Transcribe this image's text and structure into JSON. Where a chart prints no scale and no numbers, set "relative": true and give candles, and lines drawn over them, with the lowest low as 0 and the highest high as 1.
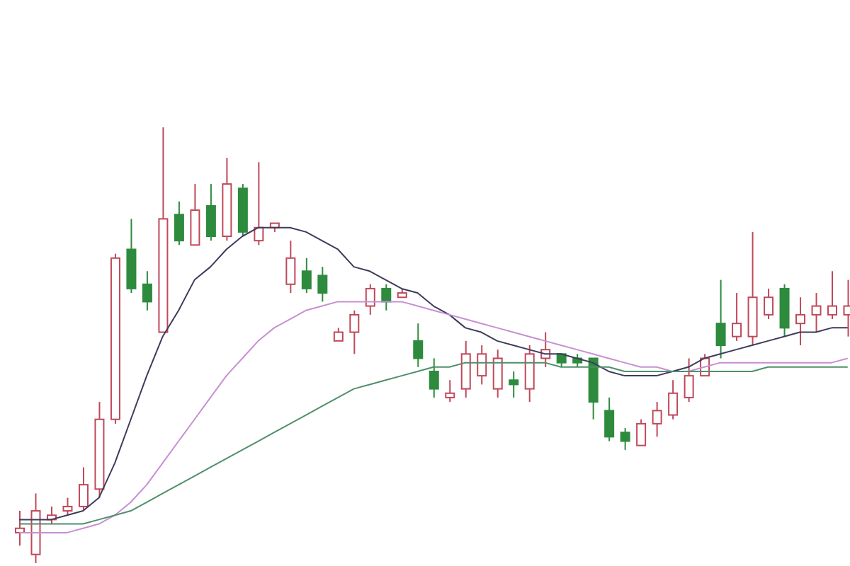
{
  "chart_data": {
    "type": "candlestick",
    "relative": true,
    "categories": [
      null,
      null,
      null,
      null,
      null,
      null,
      null,
      null,
      null,
      null,
      null,
      null,
      null,
      null,
      null,
      null,
      null,
      null,
      null,
      null,
      null,
      null,
      null,
      null,
      null,
      null,
      null,
      null,
      null,
      null,
      null,
      null,
      null,
      null,
      null,
      null,
      null,
      null,
      null,
      null,
      null,
      null,
      null,
      null,
      null,
      null,
      null,
      null,
      null,
      null,
      null,
      null,
      null
    ],
    "ohlc": [
      [
        0.07,
        0.12,
        0.04,
        0.08
      ],
      [
        0.02,
        0.16,
        0,
        0.12
      ],
      [
        0.1,
        0.13,
        0.09,
        0.11
      ],
      [
        0.12,
        0.15,
        0.11,
        0.13
      ],
      [
        0.13,
        0.22,
        0.12,
        0.18
      ],
      [
        0.17,
        0.37,
        0.15,
        0.33
      ],
      [
        0.33,
        0.71,
        0.32,
        0.7
      ],
      [
        0.72,
        0.79,
        0.62,
        0.63
      ],
      [
        0.64,
        0.67,
        0.58,
        0.6
      ],
      [
        0.53,
        1,
        0.53,
        0.79
      ],
      [
        0.8,
        0.83,
        0.73,
        0.74
      ],
      [
        0.73,
        0.87,
        0.73,
        0.81
      ],
      [
        0.82,
        0.87,
        0.74,
        0.75
      ],
      [
        0.75,
        0.93,
        0.74,
        0.87
      ],
      [
        0.86,
        0.87,
        0.75,
        0.76
      ],
      [
        0.74,
        0.92,
        0.73,
        0.77
      ],
      [
        0.77,
        0.78,
        0.76,
        0.78
      ],
      [
        0.64,
        0.74,
        0.62,
        0.7
      ],
      [
        0.67,
        0.7,
        0.62,
        0.63
      ],
      [
        0.66,
        0.68,
        0.6,
        0.62
      ],
      [
        0.51,
        0.54,
        0.51,
        0.53
      ],
      [
        0.53,
        0.58,
        0.48,
        0.57
      ],
      [
        0.59,
        0.64,
        0.57,
        0.63
      ],
      [
        0.63,
        0.64,
        0.58,
        0.6
      ],
      [
        0.61,
        0.63,
        0.61,
        0.62
      ],
      [
        0.51,
        0.55,
        0.45,
        0.47
      ],
      [
        0.44,
        0.47,
        0.38,
        0.4
      ],
      [
        0.38,
        0.42,
        0.37,
        0.39
      ],
      [
        0.4,
        0.51,
        0.38,
        0.48
      ],
      [
        0.43,
        0.5,
        0.41,
        0.48
      ],
      [
        0.4,
        0.49,
        0.38,
        0.47
      ],
      [
        0.42,
        0.44,
        0.38,
        0.41
      ],
      [
        0.4,
        0.5,
        0.37,
        0.48
      ],
      [
        0.47,
        0.53,
        0.45,
        0.49
      ],
      [
        0.48,
        0.48,
        0.45,
        0.46
      ],
      [
        0.47,
        0.48,
        0.45,
        0.46
      ],
      [
        0.47,
        0.47,
        0.33,
        0.37
      ],
      [
        0.35,
        0.38,
        0.28,
        0.29
      ],
      [
        0.3,
        0.31,
        0.26,
        0.28
      ],
      [
        0.27,
        0.33,
        0.27,
        0.32
      ],
      [
        0.32,
        0.37,
        0.29,
        0.35
      ],
      [
        0.34,
        0.42,
        0.33,
        0.39
      ],
      [
        0.38,
        0.47,
        0.37,
        0.43
      ],
      [
        0.43,
        0.48,
        0.43,
        0.47
      ],
      [
        0.55,
        0.65,
        0.47,
        0.5
      ],
      [
        0.52,
        0.62,
        0.51,
        0.55
      ],
      [
        0.52,
        0.76,
        0.5,
        0.61
      ],
      [
        0.57,
        0.63,
        0.56,
        0.61
      ],
      [
        0.63,
        0.64,
        0.52,
        0.54
      ],
      [
        0.55,
        0.61,
        0.5,
        0.57
      ],
      [
        0.57,
        0.62,
        0.53,
        0.59
      ],
      [
        0.57,
        0.67,
        0.56,
        0.59
      ],
      [
        0.57,
        0.65,
        0.52,
        0.59
      ]
    ],
    "series": [
      {
        "type": "line",
        "color": "#3c3c5c",
        "values": [
          0.1,
          0.1,
          0.1,
          0.11,
          0.12,
          0.15,
          0.23,
          0.33,
          0.43,
          0.52,
          0.58,
          0.65,
          0.68,
          0.72,
          0.75,
          0.77,
          0.77,
          0.77,
          0.76,
          0.74,
          0.72,
          0.68,
          0.67,
          0.65,
          0.63,
          0.62,
          0.59,
          0.57,
          0.54,
          0.53,
          0.51,
          0.5,
          0.49,
          0.48,
          0.48,
          0.47,
          0.46,
          0.44,
          0.43,
          0.43,
          0.43,
          0.44,
          0.45,
          0.47,
          0.48,
          0.49,
          0.5,
          0.51,
          0.52,
          0.53,
          0.53,
          0.54,
          0.54
        ]
      },
      {
        "type": "line",
        "color": "#c88fd2",
        "values": [
          0.07,
          0.07,
          0.07,
          0.07,
          0.08,
          0.09,
          0.11,
          0.14,
          0.18,
          0.23,
          0.28,
          0.33,
          0.38,
          0.43,
          0.47,
          0.51,
          0.54,
          0.56,
          0.58,
          0.59,
          0.6,
          0.6,
          0.6,
          0.6,
          0.6,
          0.59,
          0.58,
          0.57,
          0.56,
          0.55,
          0.54,
          0.53,
          0.52,
          0.51,
          0.5,
          0.49,
          0.48,
          0.47,
          0.46,
          0.45,
          0.45,
          0.44,
          0.44,
          0.45,
          0.46,
          0.46,
          0.46,
          0.46,
          0.46,
          0.46,
          0.46,
          0.46,
          0.47
        ]
      },
      {
        "type": "line",
        "color": "#4f8f6a",
        "values": [
          0.09,
          0.09,
          0.09,
          0.09,
          0.09,
          0.1,
          0.11,
          0.12,
          0.14,
          0.16,
          0.18,
          0.2,
          0.22,
          0.24,
          0.26,
          0.28,
          0.3,
          0.32,
          0.34,
          0.36,
          0.38,
          0.4,
          0.41,
          0.42,
          0.43,
          0.44,
          0.45,
          0.45,
          0.46,
          0.46,
          0.46,
          0.46,
          0.46,
          0.46,
          0.45,
          0.45,
          0.45,
          0.45,
          0.44,
          0.44,
          0.44,
          0.44,
          0.44,
          0.44,
          0.44,
          0.44,
          0.44,
          0.45,
          0.45,
          0.45,
          0.45,
          0.45,
          0.45
        ]
      }
    ],
    "marker": "none"
  }
}
